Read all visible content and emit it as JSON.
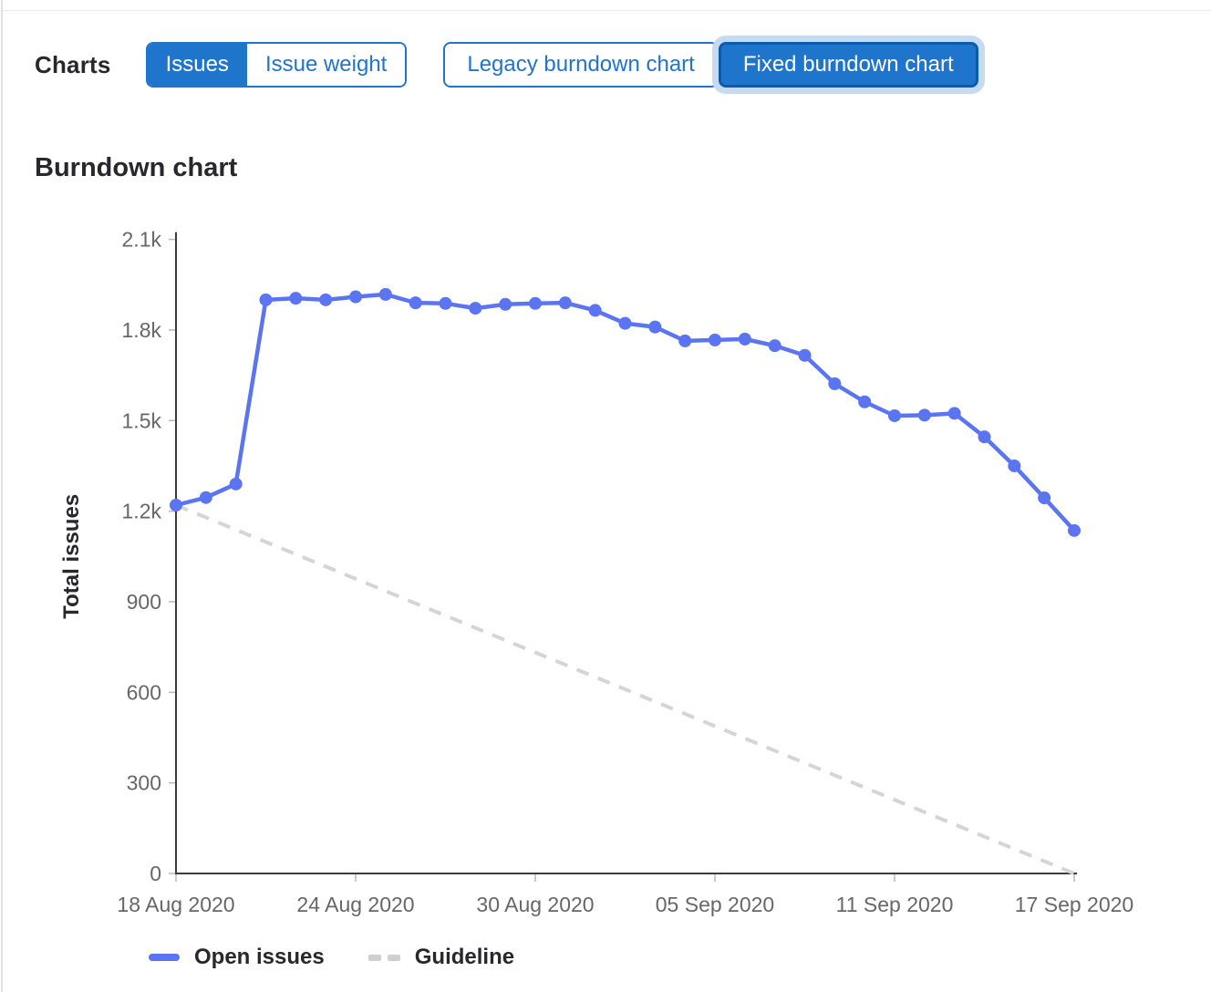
{
  "header": {
    "label": "Charts",
    "toggle_groups": [
      {
        "name": "metric-toggle",
        "buttons": [
          {
            "label": "Issues",
            "selected": true
          },
          {
            "label": "Issue weight",
            "selected": false
          }
        ]
      },
      {
        "name": "chart-version-toggle",
        "buttons": [
          {
            "label": "Legacy burndown chart",
            "selected": false
          },
          {
            "label": "Fixed burndown chart",
            "selected": true,
            "focused": true
          }
        ]
      }
    ]
  },
  "section": {
    "title": "Burndown chart"
  },
  "chart_data": {
    "type": "line",
    "title": "Burndown chart",
    "xlabel": "",
    "ylabel": "Total issues",
    "ylim": [
      0,
      2100
    ],
    "grid": false,
    "legend_position": "bottom",
    "y_ticks": [
      0,
      300,
      600,
      900,
      1200,
      1500,
      1800,
      2100
    ],
    "y_tick_labels": [
      "0",
      "300",
      "600",
      "900",
      "1.2k",
      "1.5k",
      "1.8k",
      "2.1k"
    ],
    "x": [
      "18 Aug 2020",
      "19 Aug 2020",
      "20 Aug 2020",
      "21 Aug 2020",
      "22 Aug 2020",
      "23 Aug 2020",
      "24 Aug 2020",
      "25 Aug 2020",
      "26 Aug 2020",
      "27 Aug 2020",
      "28 Aug 2020",
      "29 Aug 2020",
      "30 Aug 2020",
      "31 Aug 2020",
      "01 Sep 2020",
      "02 Sep 2020",
      "03 Sep 2020",
      "04 Sep 2020",
      "05 Sep 2020",
      "06 Sep 2020",
      "07 Sep 2020",
      "08 Sep 2020",
      "09 Sep 2020",
      "10 Sep 2020",
      "11 Sep 2020",
      "12 Sep 2020",
      "13 Sep 2020",
      "14 Sep 2020",
      "15 Sep 2020",
      "16 Sep 2020",
      "17 Sep 2020"
    ],
    "x_tick_indices": [
      0,
      6,
      12,
      18,
      24,
      30
    ],
    "x_tick_labels": [
      "18 Aug 2020",
      "24 Aug 2020",
      "30 Aug 2020",
      "05 Sep 2020",
      "11 Sep 2020",
      "17 Sep 2020"
    ],
    "series": [
      {
        "name": "Open issues",
        "style": "solid",
        "color": "#5b74f2",
        "values": [
          1220,
          1245,
          1290,
          1900,
          1905,
          1900,
          1910,
          1918,
          1890,
          1888,
          1872,
          1885,
          1888,
          1890,
          1865,
          1822,
          1810,
          1764,
          1767,
          1770,
          1748,
          1716,
          1622,
          1562,
          1516,
          1518,
          1524,
          1446,
          1350,
          1244,
          1136
        ]
      },
      {
        "name": "Guideline",
        "style": "dashed",
        "color": "#d5d5d5",
        "start_value": 1220,
        "end_value": 0
      }
    ]
  },
  "colors": {
    "accent_blue": "#1f75cb",
    "selected_border": "#0b5cad",
    "focus_ring": "#c6daf3",
    "series_line": "#5b74f2",
    "guideline": "#d5d5d5",
    "axis": "#3c3c3c",
    "tick": "#b8b8b8",
    "tick_text": "#676767",
    "text_dark": "#28272d"
  }
}
